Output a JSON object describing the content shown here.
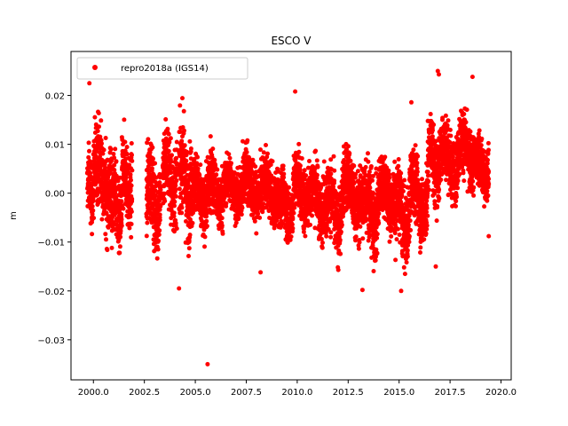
{
  "chart_data": {
    "type": "scatter",
    "title": "ESCO V",
    "xlabel": "",
    "ylabel": "m",
    "xlim": [
      1998.9,
      2020.5
    ],
    "ylim": [
      -0.0382,
      0.029
    ],
    "grid": false,
    "legend_position": "top-left",
    "xticks": [
      2000.0,
      2002.5,
      2005.0,
      2007.5,
      2010.0,
      2012.5,
      2015.0,
      2017.5,
      2020.0
    ],
    "xtick_labels": [
      "2000.0",
      "2002.5",
      "2005.0",
      "2007.5",
      "2010.0",
      "2012.5",
      "2015.0",
      "2017.5",
      "2020.0"
    ],
    "yticks": [
      0.02,
      0.01,
      0.0,
      -0.01,
      -0.02,
      -0.03
    ],
    "ytick_labels": [
      "0.02",
      "0.01",
      "0.00",
      "−0.01",
      "−0.02",
      "−0.03"
    ],
    "series": [
      {
        "name": "repro2018a (IGS14)",
        "color": "#ff0000",
        "marker": "circle",
        "segments": [
          {
            "x": [
              1999.7,
              2000.0
            ],
            "ymin": -0.01,
            "ymax": 0.012
          },
          {
            "x": [
              2000.0,
              2000.9
            ],
            "ymin": -0.013,
            "ymax": 0.02
          },
          {
            "x": [
              2000.9,
              2001.4
            ],
            "ymin": -0.018,
            "ymax": 0.012
          },
          {
            "x": [
              2001.4,
              2001.9
            ],
            "ymin": -0.0125,
            "ymax": 0.0165
          },
          {
            "x": [
              2002.6,
              2003.3
            ],
            "ymin": -0.017,
            "ymax": 0.015
          },
          {
            "x": [
              2003.4,
              2004.1
            ],
            "ymin": -0.012,
            "ymax": 0.019
          },
          {
            "x": [
              2004.2,
              2004.8
            ],
            "ymin": -0.015,
            "ymax": 0.02
          },
          {
            "x": [
              2004.8,
              2005.6
            ],
            "ymin": -0.012,
            "ymax": 0.011
          },
          {
            "x": [
              2005.6,
              2006.4
            ],
            "ymin": -0.011,
            "ymax": 0.012
          },
          {
            "x": [
              2006.4,
              2007.3
            ],
            "ymin": -0.008,
            "ymax": 0.01
          },
          {
            "x": [
              2007.3,
              2008.2
            ],
            "ymin": -0.01,
            "ymax": 0.013
          },
          {
            "x": [
              2008.2,
              2009.1
            ],
            "ymin": -0.01,
            "ymax": 0.011
          },
          {
            "x": [
              2009.1,
              2009.8
            ],
            "ymin": -0.013,
            "ymax": 0.008
          },
          {
            "x": [
              2009.8,
              2010.6
            ],
            "ymin": -0.011,
            "ymax": 0.012
          },
          {
            "x": [
              2010.6,
              2011.4
            ],
            "ymin": -0.013,
            "ymax": 0.011
          },
          {
            "x": [
              2011.4,
              2012.2
            ],
            "ymin": -0.017,
            "ymax": 0.01
          },
          {
            "x": [
              2012.2,
              2013.2
            ],
            "ymin": -0.013,
            "ymax": 0.013
          },
          {
            "x": [
              2013.2,
              2014.0
            ],
            "ymin": -0.018,
            "ymax": 0.012
          },
          {
            "x": [
              2014.0,
              2014.8
            ],
            "ymin": -0.012,
            "ymax": 0.012
          },
          {
            "x": [
              2014.8,
              2015.5
            ],
            "ymin": -0.019,
            "ymax": 0.01
          },
          {
            "x": [
              2015.5,
              2016.4
            ],
            "ymin": -0.015,
            "ymax": 0.013
          },
          {
            "x": [
              2016.4,
              2017.0
            ],
            "ymin": -0.007,
            "ymax": 0.02
          },
          {
            "x": [
              2017.0,
              2017.9
            ],
            "ymin": -0.005,
            "ymax": 0.019
          },
          {
            "x": [
              2017.9,
              2018.8
            ],
            "ymin": -0.003,
            "ymax": 0.02
          },
          {
            "x": [
              2018.8,
              2019.4
            ],
            "ymin": -0.006,
            "ymax": 0.016
          }
        ],
        "outliers": [
          {
            "x": 1999.8,
            "y": 0.0225
          },
          {
            "x": 2016.9,
            "y": 0.025
          },
          {
            "x": 2016.95,
            "y": 0.0243
          },
          {
            "x": 2018.6,
            "y": 0.0238
          },
          {
            "x": 2009.9,
            "y": 0.0208
          },
          {
            "x": 2015.6,
            "y": 0.0186
          },
          {
            "x": 2005.6,
            "y": -0.035
          },
          {
            "x": 2004.2,
            "y": -0.0195
          },
          {
            "x": 2008.2,
            "y": -0.0162
          },
          {
            "x": 2013.2,
            "y": -0.0198
          },
          {
            "x": 2015.1,
            "y": -0.02
          },
          {
            "x": 2016.8,
            "y": -0.015
          },
          {
            "x": 2019.4,
            "y": -0.0088
          }
        ]
      }
    ]
  }
}
